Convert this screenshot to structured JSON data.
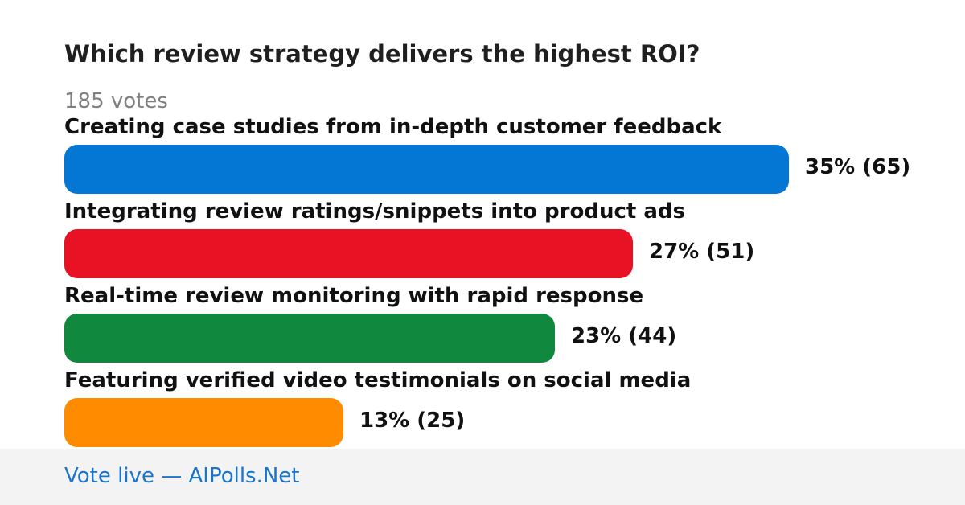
{
  "poll": {
    "title": "Which review strategy delivers the highest ROI?",
    "votes_text": "185 votes"
  },
  "footer": {
    "link_text": "Vote live — AIPolls.Net"
  },
  "chart_data": {
    "type": "bar",
    "orientation": "horizontal",
    "title": "Which review strategy delivers the highest ROI?",
    "total_votes": 185,
    "categories": [
      "Creating case studies from in-depth customer feedback",
      "Integrating review ratings/snippets into product ads",
      "Real-time review monitoring with rapid response",
      "Featuring verified video testimonials on social media"
    ],
    "series": [
      {
        "values": [
          65,
          51,
          44,
          25
        ],
        "percents": [
          35,
          27,
          23,
          13
        ]
      }
    ],
    "value_labels": [
      "35% (65)",
      "27% (51)",
      "23% (44)",
      "13% (25)"
    ],
    "colors": [
      "#0477d4",
      "#e81224",
      "#10893e",
      "#ff8c00"
    ],
    "grid": false,
    "legend": "none"
  }
}
